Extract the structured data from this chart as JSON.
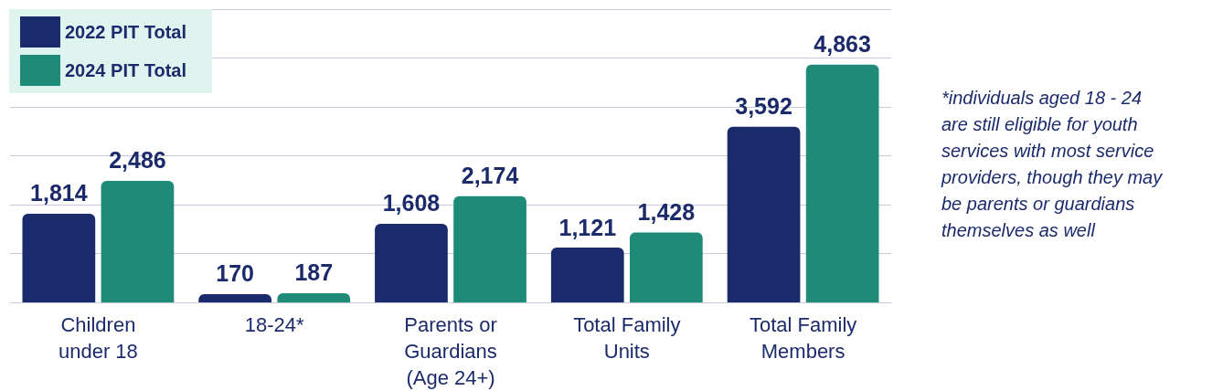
{
  "chart_data": {
    "type": "bar",
    "categories": [
      "Children\nunder 18",
      "18-24*",
      "Parents or\nGuardians\n(Age 24+)",
      "Total Family\nUnits",
      "Total Family\nMembers"
    ],
    "series": [
      {
        "name": "2022 PIT Total",
        "color": "#1b2a6b",
        "values": [
          1814,
          170,
          1608,
          1121,
          3592
        ],
        "value_labels": [
          "1,814",
          "170",
          "1,608",
          "1,121",
          "3,592"
        ]
      },
      {
        "name": "2024 PIT Total",
        "color": "#1e8a78",
        "values": [
          2486,
          187,
          2174,
          1428,
          4863
        ],
        "value_labels": [
          "2,486",
          "187",
          "2,174",
          "1,428",
          "4,863"
        ]
      }
    ],
    "ylim": [
      0,
      6000
    ],
    "yticks": [
      {
        "value": 0,
        "label": null
      },
      {
        "value": 1000,
        "label": null
      },
      {
        "value": 2000,
        "label": null
      },
      {
        "value": 3000,
        "label": null
      },
      {
        "value": 4000,
        "label": null
      },
      {
        "value": 5000,
        "label": null
      },
      {
        "value": 6000,
        "label": null
      }
    ],
    "grid": "y",
    "legend": "top left",
    "annotations": [
      "*individuals aged 18 - 24\nare still eligible for youth\nservices with most service\nproviders, though they may\nbe parents or guardians\nthemselves as well"
    ]
  }
}
